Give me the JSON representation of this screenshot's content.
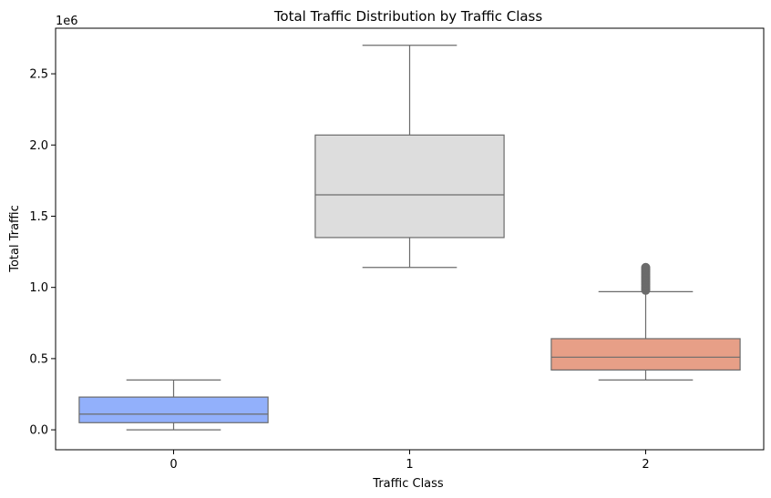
{
  "chart_data": {
    "type": "box",
    "title": "Total Traffic Distribution by Traffic Class",
    "xlabel": "Traffic Class",
    "ylabel": "Total Traffic",
    "offset_label": "1e6",
    "ylim": [
      -0.14,
      2.82
    ],
    "yticks": [
      0.0,
      0.5,
      1.0,
      1.5,
      2.0,
      2.5
    ],
    "ytick_labels": [
      "0.0",
      "0.5",
      "1.0",
      "1.5",
      "2.0",
      "2.5"
    ],
    "categories": [
      "0",
      "1",
      "2"
    ],
    "boxes": [
      {
        "category": "0",
        "whisker_low": 0.0,
        "q1": 0.05,
        "median": 0.11,
        "q3": 0.23,
        "whisker_high": 0.35,
        "color": "#92b0fb",
        "outliers": []
      },
      {
        "category": "1",
        "whisker_low": 1.14,
        "q1": 1.35,
        "median": 1.65,
        "q3": 2.07,
        "whisker_high": 2.7,
        "color": "#dddddd",
        "outliers": []
      },
      {
        "category": "2",
        "whisker_low": 0.35,
        "q1": 0.42,
        "median": 0.51,
        "q3": 0.64,
        "whisker_high": 0.97,
        "color": "#e79f87",
        "outliers": [
          0.98,
          0.99,
          1.0,
          1.01,
          1.02,
          1.03,
          1.04,
          1.05,
          1.06,
          1.07,
          1.08,
          1.09,
          1.1,
          1.11,
          1.12,
          1.13,
          1.14
        ]
      }
    ],
    "line_color": "#6b6b6b",
    "grid": false,
    "legend": "none"
  }
}
